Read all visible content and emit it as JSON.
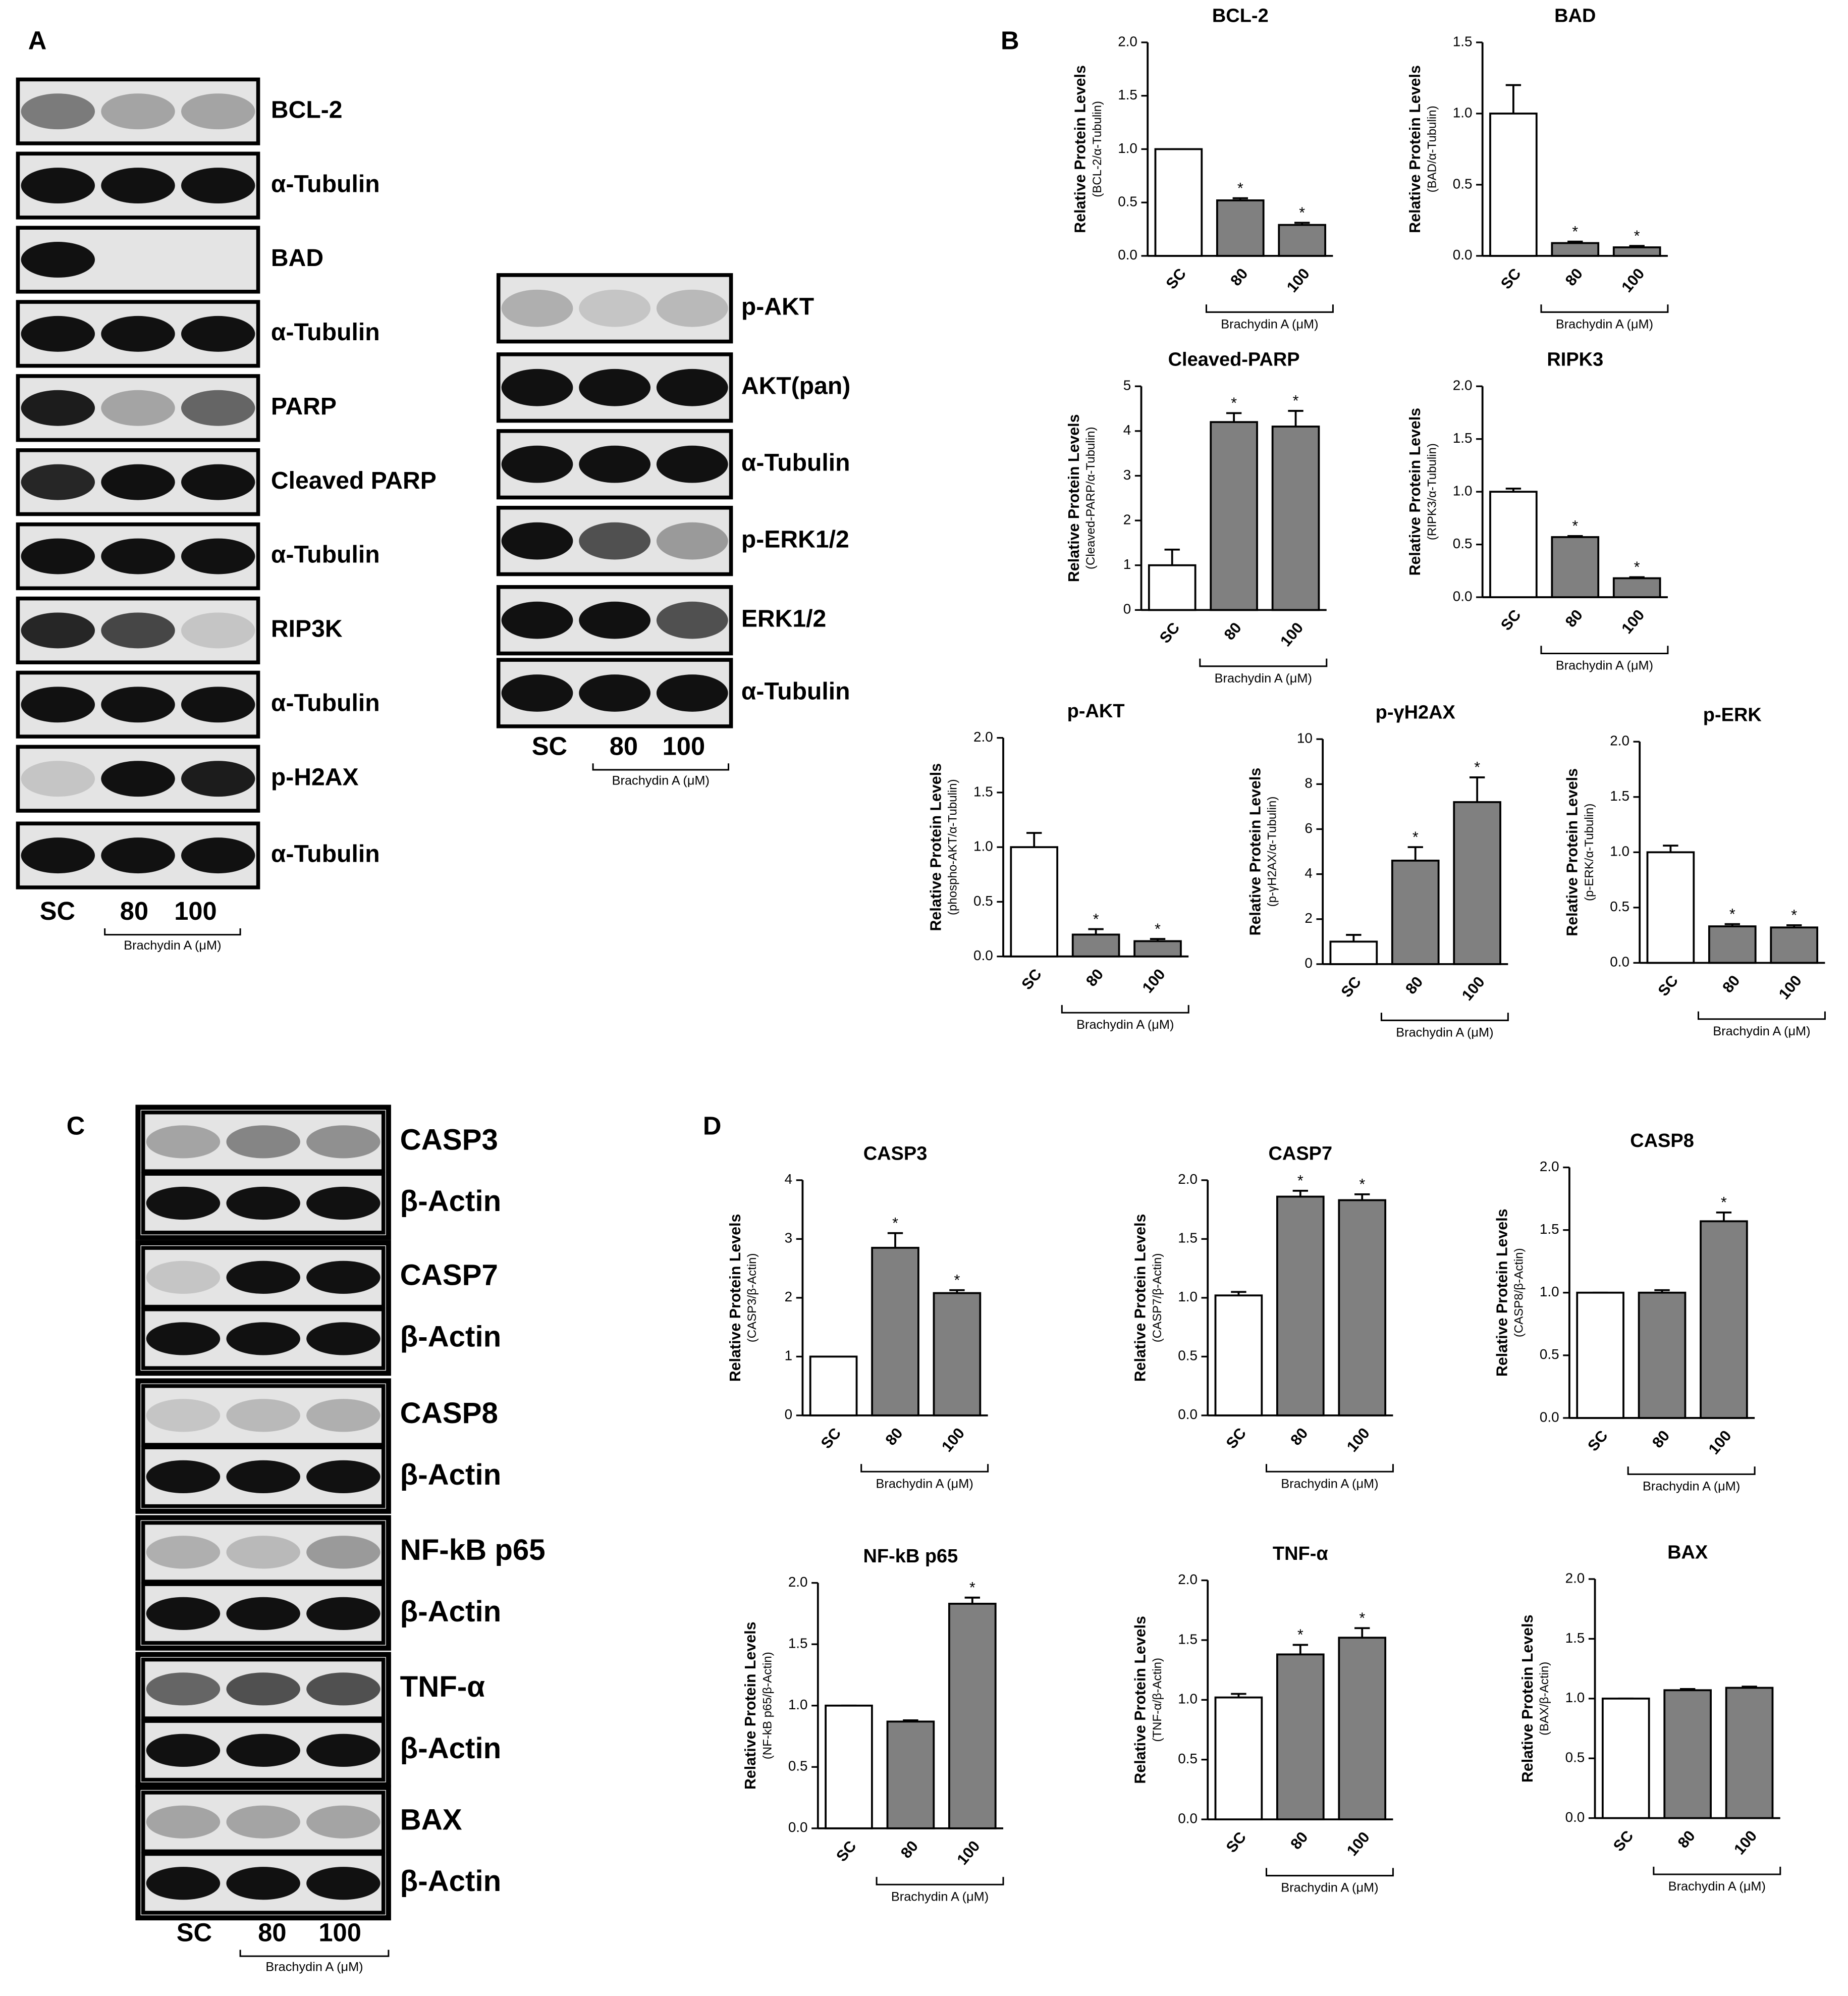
{
  "figure": {
    "panels": [
      "A",
      "B",
      "C",
      "D"
    ],
    "blots_a1": [
      "BCL-2",
      "α-Tubulin",
      "BAD",
      "α-Tubulin",
      "PARP",
      "Cleaved PARP",
      "α-Tubulin",
      "RIP3K",
      "α-Tubulin",
      "p-H2AX",
      "α-Tubulin"
    ],
    "blots_a2": [
      "p-AKT",
      "AKT(pan)",
      "α-Tubulin",
      "p-ERK1/2",
      "ERK1/2",
      "α-Tubulin"
    ],
    "blots_c": [
      "CASP3",
      "β-Actin",
      "CASP7",
      "β-Actin",
      "CASP8",
      "β-Actin",
      "NF-kB p65",
      "β-Actin",
      "TNF-α",
      "β-Actin",
      "BAX",
      "β-Actin"
    ],
    "lanes": [
      "SC",
      "80",
      "100"
    ],
    "treatment": "Brachydin A (μM)"
  },
  "chart_data": [
    {
      "type": "bar",
      "title": "BCL-2",
      "y_label": "Relative Protein Levels",
      "y_sublabel": "(BCL-2/α-Tubulin)",
      "categories": [
        "SC",
        "80",
        "100"
      ],
      "group_label": "Brachydin A (μM)",
      "values": [
        1.0,
        0.52,
        0.29
      ],
      "errors": [
        0,
        0.02,
        0.02
      ],
      "stars": [
        null,
        "*",
        "*"
      ],
      "colors": [
        "#ffffff",
        "#808080",
        "#808080"
      ],
      "ylim": [
        0,
        2
      ],
      "yticks": [
        {
          "value": 0,
          "label": "0.0"
        },
        0.5,
        {
          "value": 1,
          "label": "1.0"
        },
        1.5,
        {
          "value": 2,
          "label": "2.0"
        }
      ]
    },
    {
      "type": "bar",
      "title": "BAD",
      "y_label": "Relative Protein Levels",
      "y_sublabel": "(BAD/α-Tubulin)",
      "categories": [
        "SC",
        "80",
        "100"
      ],
      "group_label": "Brachydin A (μM)",
      "values": [
        1.0,
        0.09,
        0.06
      ],
      "errors": [
        0.2,
        0.01,
        0.01
      ],
      "stars": [
        null,
        "*",
        "*"
      ],
      "colors": [
        "#ffffff",
        "#808080",
        "#808080"
      ],
      "ylim": [
        0,
        1.5
      ],
      "yticks": [
        {
          "value": 0,
          "label": "0.0"
        },
        0.5,
        {
          "value": 1,
          "label": "1.0"
        },
        1.5
      ]
    },
    {
      "type": "bar",
      "title": "Cleaved-PARP",
      "y_label": "Relative Protein Levels",
      "y_sublabel": "(Cleaved-PARP/α-Tubulin)",
      "categories": [
        "SC",
        "80",
        "100"
      ],
      "group_label": "Brachydin A (μM)",
      "values": [
        1.0,
        4.2,
        4.1
      ],
      "errors": [
        0.35,
        0.2,
        0.35
      ],
      "stars": [
        null,
        "*",
        "*"
      ],
      "colors": [
        "#ffffff",
        "#808080",
        "#808080"
      ],
      "ylim": [
        0,
        5
      ],
      "yticks": [
        0,
        1,
        2,
        3,
        4,
        5
      ]
    },
    {
      "type": "bar",
      "title": "RIPK3",
      "y_label": "Relative Protein Levels",
      "y_sublabel": "(RIPK3/α-Tubulin)",
      "categories": [
        "SC",
        "80",
        "100"
      ],
      "group_label": "Brachydin A (μM)",
      "values": [
        1.0,
        0.57,
        0.18
      ],
      "errors": [
        0.03,
        0.01,
        0.01
      ],
      "stars": [
        null,
        "*",
        "*"
      ],
      "colors": [
        "#ffffff",
        "#808080",
        "#808080"
      ],
      "ylim": [
        0,
        2
      ],
      "yticks": [
        {
          "value": 0,
          "label": "0.0"
        },
        0.5,
        {
          "value": 1,
          "label": "1.0"
        },
        1.5,
        {
          "value": 2,
          "label": "2.0"
        }
      ]
    },
    {
      "type": "bar",
      "title": "p-AKT",
      "y_label": "Relative Protein Levels",
      "y_sublabel": "(phospho-AKT/α-Tubulin)",
      "categories": [
        "SC",
        "80",
        "100"
      ],
      "group_label": "Brachydin A (μM)",
      "values": [
        1.0,
        0.2,
        0.14
      ],
      "errors": [
        0.13,
        0.05,
        0.02
      ],
      "stars": [
        null,
        "*",
        "*"
      ],
      "colors": [
        "#ffffff",
        "#808080",
        "#808080"
      ],
      "ylim": [
        0,
        2
      ],
      "yticks": [
        {
          "value": 0,
          "label": "0.0"
        },
        0.5,
        {
          "value": 1,
          "label": "1.0"
        },
        1.5,
        {
          "value": 2,
          "label": "2.0"
        }
      ]
    },
    {
      "type": "bar",
      "title": "p-γH2AX",
      "y_label": "Relative Protein Levels",
      "y_sublabel": "(p-γH2AX/α-Tubulin)",
      "categories": [
        "SC",
        "80",
        "100"
      ],
      "group_label": "Brachydin A (μM)",
      "values": [
        1.0,
        4.6,
        7.2
      ],
      "errors": [
        0.3,
        0.6,
        1.1
      ],
      "stars": [
        null,
        "*",
        "*"
      ],
      "colors": [
        "#ffffff",
        "#808080",
        "#808080"
      ],
      "ylim": [
        0,
        10
      ],
      "yticks": [
        0,
        2,
        4,
        6,
        8,
        10
      ]
    },
    {
      "type": "bar",
      "title": "p-ERK",
      "y_label": "Relative Protein Levels",
      "y_sublabel": "(p-ERK/α-Tubulin)",
      "categories": [
        "SC",
        "80",
        "100"
      ],
      "group_label": "Brachydin A (μM)",
      "values": [
        1.0,
        0.33,
        0.32
      ],
      "errors": [
        0.06,
        0.02,
        0.02
      ],
      "stars": [
        null,
        "*",
        "*"
      ],
      "colors": [
        "#ffffff",
        "#808080",
        "#808080"
      ],
      "ylim": [
        0,
        2
      ],
      "yticks": [
        {
          "value": 0,
          "label": "0.0"
        },
        0.5,
        {
          "value": 1,
          "label": "1.0"
        },
        1.5,
        {
          "value": 2,
          "label": "2.0"
        }
      ]
    },
    {
      "type": "bar",
      "title": "CASP3",
      "y_label": "Relative Protein Levels",
      "y_sublabel": "(CASP3/β-Actin)",
      "categories": [
        "SC",
        "80",
        "100"
      ],
      "group_label": "Brachydin A (μM)",
      "values": [
        1.0,
        2.85,
        2.08
      ],
      "errors": [
        0,
        0.25,
        0.05
      ],
      "stars": [
        null,
        "*",
        "*"
      ],
      "colors": [
        "#ffffff",
        "#808080",
        "#808080"
      ],
      "ylim": [
        0,
        4
      ],
      "yticks": [
        0,
        1,
        2,
        3,
        4
      ]
    },
    {
      "type": "bar",
      "title": "CASP7",
      "y_label": "Relative Protein Levels",
      "y_sublabel": "(CASP7/β-Actin)",
      "categories": [
        "SC",
        "80",
        "100"
      ],
      "group_label": "Brachydin A (μM)",
      "values": [
        1.02,
        1.86,
        1.83
      ],
      "errors": [
        0.03,
        0.05,
        0.05
      ],
      "stars": [
        null,
        "*",
        "*"
      ],
      "colors": [
        "#ffffff",
        "#808080",
        "#808080"
      ],
      "ylim": [
        0,
        2
      ],
      "yticks": [
        {
          "value": 0,
          "label": "0.0"
        },
        0.5,
        {
          "value": 1,
          "label": "1.0"
        },
        1.5,
        {
          "value": 2,
          "label": "2.0"
        }
      ]
    },
    {
      "type": "bar",
      "title": "CASP8",
      "y_label": "Relative Protein Levels",
      "y_sublabel": "(CASP8/β-Actin)",
      "categories": [
        "SC",
        "80",
        "100"
      ],
      "group_label": "Brachydin A (μM)",
      "values": [
        1.0,
        1.0,
        1.57
      ],
      "errors": [
        0,
        0.02,
        0.07
      ],
      "stars": [
        null,
        null,
        "*"
      ],
      "colors": [
        "#ffffff",
        "#808080",
        "#808080"
      ],
      "ylim": [
        0,
        2
      ],
      "yticks": [
        {
          "value": 0,
          "label": "0.0"
        },
        0.5,
        {
          "value": 1,
          "label": "1.0"
        },
        1.5,
        {
          "value": 2,
          "label": "2.0"
        }
      ]
    },
    {
      "type": "bar",
      "title": "NF-kB p65",
      "y_label": "Relative Protein Levels",
      "y_sublabel": "(NF-kB p65/β-Actin)",
      "categories": [
        "SC",
        "80",
        "100"
      ],
      "group_label": "Brachydin A (μM)",
      "values": [
        1.0,
        0.87,
        1.83
      ],
      "errors": [
        0,
        0.01,
        0.05
      ],
      "stars": [
        null,
        null,
        "*"
      ],
      "colors": [
        "#ffffff",
        "#808080",
        "#808080"
      ],
      "ylim": [
        0,
        2
      ],
      "yticks": [
        {
          "value": 0,
          "label": "0.0"
        },
        0.5,
        {
          "value": 1,
          "label": "1.0"
        },
        1.5,
        {
          "value": 2,
          "label": "2.0"
        }
      ]
    },
    {
      "type": "bar",
      "title": "TNF-α",
      "y_label": "Relative Protein Levels",
      "y_sublabel": "(TNF-α/β-Actin)",
      "categories": [
        "SC",
        "80",
        "100"
      ],
      "group_label": "Brachydin A (μM)",
      "values": [
        1.02,
        1.38,
        1.52
      ],
      "errors": [
        0.03,
        0.08,
        0.08
      ],
      "stars": [
        null,
        "*",
        "*"
      ],
      "colors": [
        "#ffffff",
        "#808080",
        "#808080"
      ],
      "ylim": [
        0,
        2
      ],
      "yticks": [
        {
          "value": 0,
          "label": "0.0"
        },
        0.5,
        {
          "value": 1,
          "label": "1.0"
        },
        1.5,
        {
          "value": 2,
          "label": "2.0"
        }
      ]
    },
    {
      "type": "bar",
      "title": "BAX",
      "y_label": "Relative Protein Levels",
      "y_sublabel": "(BAX/β-Actin)",
      "categories": [
        "SC",
        "80",
        "100"
      ],
      "group_label": "Brachydin A (μM)",
      "values": [
        1.0,
        1.07,
        1.09
      ],
      "errors": [
        0,
        0.01,
        0.01
      ],
      "stars": [
        null,
        null,
        null
      ],
      "colors": [
        "#ffffff",
        "#808080",
        "#808080"
      ],
      "ylim": [
        0,
        2
      ],
      "yticks": [
        {
          "value": 0,
          "label": "0.0"
        },
        0.5,
        {
          "value": 1,
          "label": "1.0"
        },
        1.5,
        {
          "value": 2,
          "label": "2.0"
        }
      ]
    }
  ]
}
